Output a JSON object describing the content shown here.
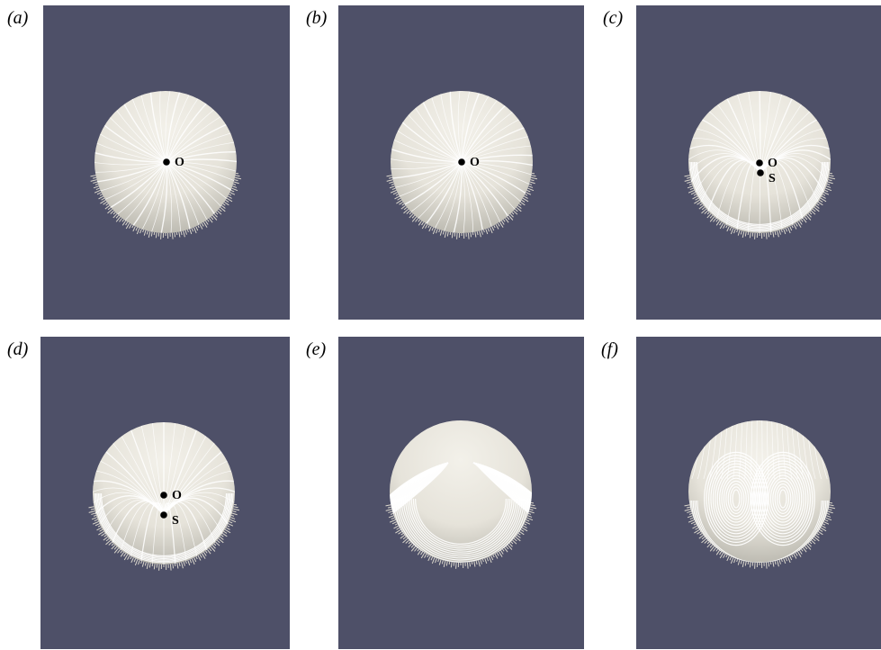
{
  "background_color": "#4e5068",
  "sphere_color": "#e6e3da",
  "streamline_color": "#ffffff",
  "point_color": "#000000",
  "panels": [
    {
      "id": "a",
      "label": "(a)",
      "points": [
        {
          "name": "O",
          "label": "O"
        }
      ]
    },
    {
      "id": "b",
      "label": "(b)",
      "points": [
        {
          "name": "O",
          "label": "O"
        }
      ]
    },
    {
      "id": "c",
      "label": "(c)",
      "points": [
        {
          "name": "O",
          "label": "O"
        },
        {
          "name": "S",
          "label": "S"
        }
      ]
    },
    {
      "id": "d",
      "label": "(d)",
      "points": [
        {
          "name": "O",
          "label": "O"
        },
        {
          "name": "S",
          "label": "S"
        }
      ]
    },
    {
      "id": "e",
      "label": "(e)",
      "points": []
    },
    {
      "id": "f",
      "label": "(f)",
      "points": []
    }
  ]
}
